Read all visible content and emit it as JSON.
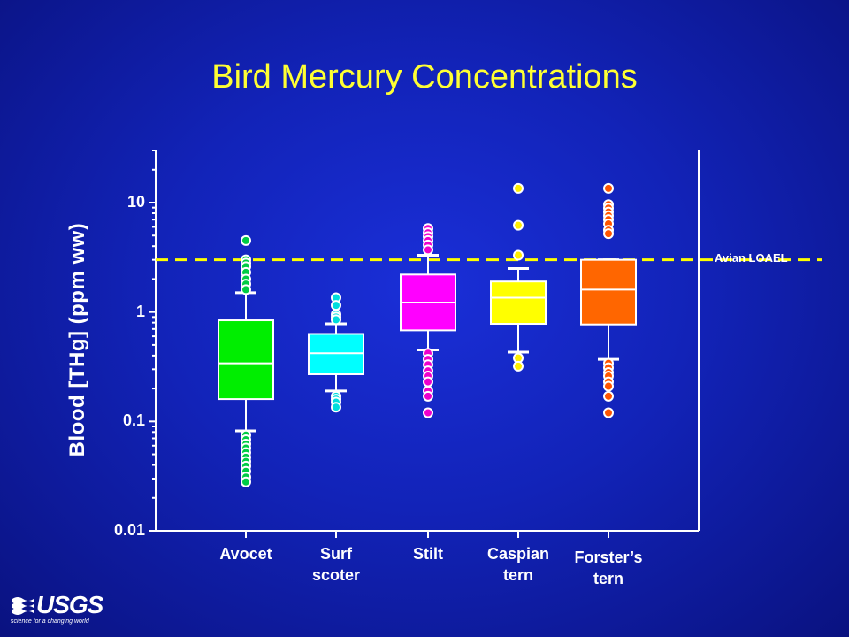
{
  "chart_data": {
    "type": "box",
    "title": "Bird Mercury Concentrations",
    "ylabel": "Blood [THg] (ppm ww)",
    "yscale": "log",
    "ylim": [
      0.01,
      30
    ],
    "yticks": [
      {
        "value": 0.01,
        "label": "0.01"
      },
      {
        "value": 0.1,
        "label": "0.1"
      },
      {
        "value": 1,
        "label": "1"
      },
      {
        "value": 10,
        "label": "10"
      }
    ],
    "reference_line": {
      "label": "Avian LOAEL",
      "value": 3.0,
      "color": "#ffff00"
    },
    "categories": [
      {
        "label": "Avocet",
        "color": "#00ee00",
        "dot_color": "#00cc44",
        "q1": 0.16,
        "median": 0.34,
        "q3": 0.84,
        "whisker_low": 0.082,
        "whisker_high": 1.5,
        "outliers": [
          4.5,
          3.0,
          2.8,
          2.6,
          2.3,
          2.0,
          1.8,
          1.6,
          0.075,
          0.068,
          0.062,
          0.057,
          0.052,
          0.047,
          0.043,
          0.039,
          0.035,
          0.031,
          0.028
        ]
      },
      {
        "label": "Surf\nscoter",
        "color": "#00ffff",
        "dot_color": "#00dddd",
        "q1": 0.27,
        "median": 0.42,
        "q3": 0.63,
        "whisker_low": 0.19,
        "whisker_high": 0.78,
        "outliers": [
          1.35,
          1.15,
          0.95,
          0.9,
          0.85,
          0.17,
          0.16,
          0.15,
          0.135
        ]
      },
      {
        "label": "Stilt",
        "color": "#ff00ff",
        "dot_color": "#ee00cc",
        "q1": 0.68,
        "median": 1.22,
        "q3": 2.2,
        "whisker_low": 0.45,
        "whisker_high": 3.3,
        "outliers": [
          5.8,
          5.3,
          4.9,
          4.5,
          4.1,
          3.7,
          0.42,
          0.37,
          0.33,
          0.29,
          0.26,
          0.23,
          0.19,
          0.17,
          0.12
        ]
      },
      {
        "label": "Caspian\ntern",
        "color": "#ffff00",
        "dot_color": "#ffee00",
        "q1": 0.78,
        "median": 1.35,
        "q3": 1.9,
        "whisker_low": 0.43,
        "whisker_high": 2.5,
        "outliers": [
          13.5,
          6.2,
          3.3,
          0.38,
          0.32
        ]
      },
      {
        "label": "Forster’s\ntern",
        "color": "#ff6600",
        "dot_color": "#ff5500",
        "q1": 0.77,
        "median": 1.6,
        "q3": 3.0,
        "whisker_low": 0.37,
        "whisker_high": 3.0,
        "outliers": [
          13.5,
          9.6,
          8.9,
          8.2,
          7.6,
          7.0,
          6.4,
          5.6,
          5.2,
          0.34,
          0.31,
          0.28,
          0.26,
          0.23,
          0.21,
          0.17,
          0.12
        ]
      }
    ]
  },
  "logo": {
    "name": "USGS",
    "tagline": "science for a changing world"
  }
}
